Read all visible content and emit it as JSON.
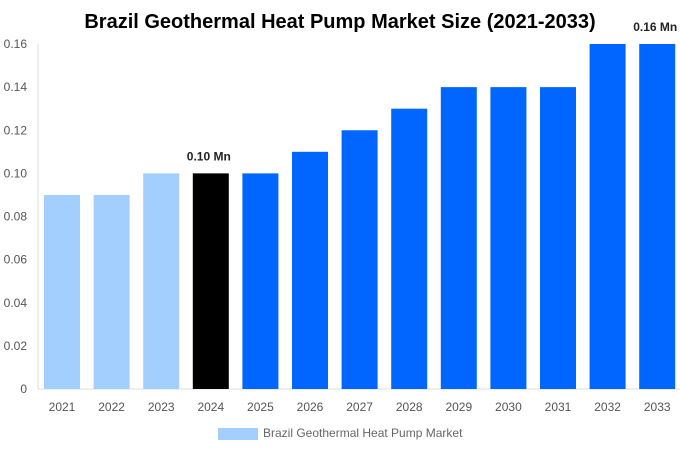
{
  "chart_data": {
    "type": "bar",
    "title": "Brazil Geothermal Heat Pump Market Size (2021-2033)",
    "categories": [
      "2021",
      "2022",
      "2023",
      "2024",
      "2025",
      "2026",
      "2027",
      "2028",
      "2029",
      "2030",
      "2031",
      "2032",
      "2033"
    ],
    "series": [
      {
        "name": "Brazil Geothermal Heat Pump Market",
        "values": [
          0.09,
          0.09,
          0.1,
          0.1,
          0.1,
          0.11,
          0.12,
          0.13,
          0.14,
          0.14,
          0.14,
          0.16,
          0.16
        ]
      }
    ],
    "bar_colors": [
      "#a3cffe",
      "#a3cffe",
      "#a3cffe",
      "#000000",
      "#0066ff",
      "#0066ff",
      "#0066ff",
      "#0066ff",
      "#0066ff",
      "#0066ff",
      "#0066ff",
      "#0066ff",
      "#0066ff"
    ],
    "data_labels": {
      "2024": "0.10 Mn",
      "2033": "0.16 Mn"
    },
    "yticks": [
      "0",
      "0.02",
      "0.04",
      "0.06",
      "0.08",
      "0.10",
      "0.12",
      "0.14",
      "0.16"
    ],
    "ylim": [
      0,
      0.16
    ],
    "xlabel": "",
    "ylabel": "",
    "grid": false,
    "legend": "bottom",
    "legend_color": "#a3cffe"
  }
}
